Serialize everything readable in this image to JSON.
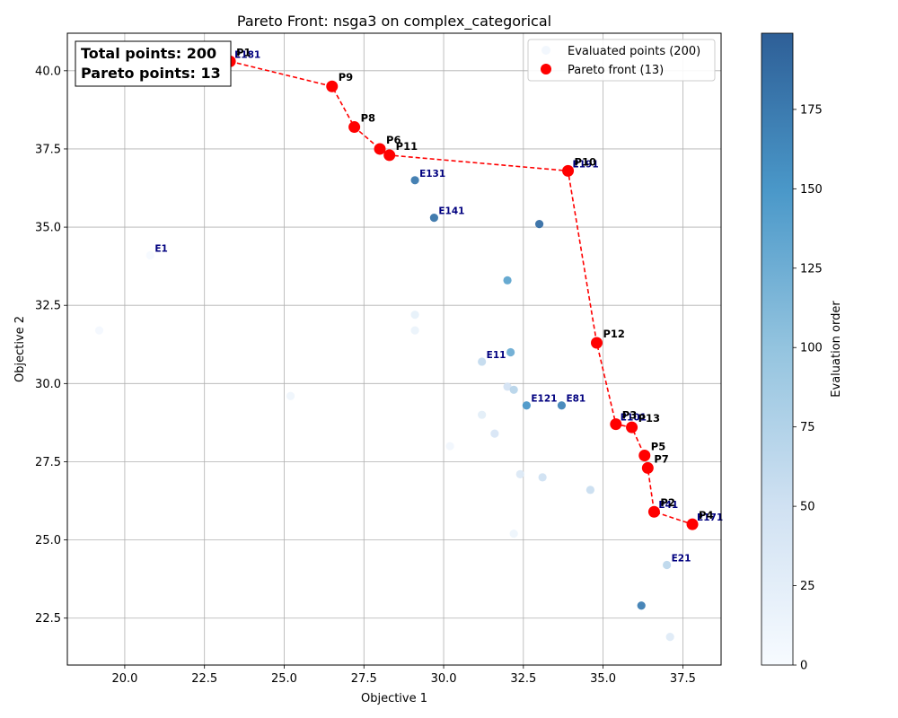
{
  "chart_data": {
    "type": "scatter",
    "title": "Pareto Front: nsga3 on complex_categorical",
    "xlabel": "Objective 1",
    "ylabel": "Objective 2",
    "xlim": [
      18.2,
      38.7
    ],
    "ylim": [
      21.0,
      41.2
    ],
    "xticks": [
      "20.0",
      "22.5",
      "25.0",
      "27.5",
      "30.0",
      "32.5",
      "35.0",
      "37.5"
    ],
    "xtick_values": [
      20.0,
      22.5,
      25.0,
      27.5,
      30.0,
      32.5,
      35.0,
      37.5
    ],
    "yticks": [
      "22.5",
      "25.0",
      "27.5",
      "30.0",
      "32.5",
      "35.0",
      "37.5",
      "40.0"
    ],
    "ytick_values": [
      22.5,
      25.0,
      27.5,
      30.0,
      32.5,
      35.0,
      37.5,
      40.0
    ],
    "grid": true,
    "legend_placement": "top-right",
    "legend": [
      {
        "label": "Evaluated points (200)",
        "color": "#f2f7fd"
      },
      {
        "label": "Pareto front (13)",
        "color": "#ff0000"
      }
    ],
    "stats": {
      "total_label": "Total points: 200",
      "pareto_label": "Pareto points: 13"
    },
    "colorbar": {
      "label": "Evaluation order",
      "range": [
        0,
        199
      ],
      "ticks": [
        "0",
        "25",
        "50",
        "75",
        "100",
        "125",
        "150",
        "175"
      ],
      "tick_values": [
        0,
        25,
        50,
        75,
        100,
        125,
        150,
        175
      ],
      "colormap": "Blues"
    },
    "evaluated_points": [
      {
        "x": 19.2,
        "y": 31.7,
        "order": 5
      },
      {
        "x": 20.8,
        "y": 34.1,
        "order": 1
      },
      {
        "x": 25.2,
        "y": 29.6,
        "order": 10
      },
      {
        "x": 29.1,
        "y": 32.2,
        "order": 20
      },
      {
        "x": 29.1,
        "y": 31.7,
        "order": 15
      },
      {
        "x": 30.2,
        "y": 28.0,
        "order": 8
      },
      {
        "x": 31.2,
        "y": 29.0,
        "order": 25
      },
      {
        "x": 31.2,
        "y": 30.7,
        "order": 60
      },
      {
        "x": 31.6,
        "y": 28.4,
        "order": 40
      },
      {
        "x": 32.0,
        "y": 29.9,
        "order": 45
      },
      {
        "x": 32.2,
        "y": 29.8,
        "order": 70
      },
      {
        "x": 32.4,
        "y": 27.1,
        "order": 35
      },
      {
        "x": 33.1,
        "y": 27.0,
        "order": 50
      },
      {
        "x": 34.6,
        "y": 26.6,
        "order": 55
      },
      {
        "x": 32.2,
        "y": 25.2,
        "order": 12
      },
      {
        "x": 37.0,
        "y": 24.2,
        "order": 65
      },
      {
        "x": 37.1,
        "y": 21.9,
        "order": 30
      },
      {
        "x": 32.0,
        "y": 33.3,
        "order": 135
      },
      {
        "x": 32.1,
        "y": 31.0,
        "order": 125
      },
      {
        "x": 32.6,
        "y": 29.3,
        "order": 150
      },
      {
        "x": 33.7,
        "y": 29.3,
        "order": 165
      },
      {
        "x": 29.1,
        "y": 36.5,
        "order": 175
      },
      {
        "x": 29.7,
        "y": 35.3,
        "order": 180
      },
      {
        "x": 33.0,
        "y": 35.1,
        "order": 185
      },
      {
        "x": 36.2,
        "y": 22.9,
        "order": 170
      }
    ],
    "eval_labels": [
      {
        "text": "E1",
        "x": 20.8,
        "y": 34.1
      },
      {
        "text": "E11",
        "x": 31.2,
        "y": 30.7
      },
      {
        "text": "E21",
        "x": 37.0,
        "y": 24.2
      },
      {
        "text": "E41",
        "x": 36.6,
        "y": 25.9
      },
      {
        "text": "E81",
        "x": 33.7,
        "y": 29.3
      },
      {
        "text": "E101",
        "x": 35.4,
        "y": 28.7
      },
      {
        "text": "E121",
        "x": 32.6,
        "y": 29.3
      },
      {
        "text": "E131",
        "x": 29.1,
        "y": 36.5
      },
      {
        "text": "E141",
        "x": 29.7,
        "y": 35.3
      },
      {
        "text": "E171",
        "x": 37.8,
        "y": 25.5
      },
      {
        "text": "E181",
        "x": 23.3,
        "y": 40.3
      },
      {
        "text": "E191",
        "x": 33.9,
        "y": 36.8
      }
    ],
    "pareto_front": [
      {
        "label": "P1",
        "x": 23.3,
        "y": 40.3
      },
      {
        "label": "P9",
        "x": 26.5,
        "y": 39.5
      },
      {
        "label": "P8",
        "x": 27.2,
        "y": 38.2
      },
      {
        "label": "P6",
        "x": 28.0,
        "y": 37.5
      },
      {
        "label": "P11",
        "x": 28.3,
        "y": 37.3
      },
      {
        "label": "P10",
        "x": 33.9,
        "y": 36.8
      },
      {
        "label": "P12",
        "x": 34.8,
        "y": 31.3
      },
      {
        "label": "P3",
        "x": 35.4,
        "y": 28.7
      },
      {
        "label": "P13",
        "x": 35.9,
        "y": 28.6
      },
      {
        "label": "P5",
        "x": 36.3,
        "y": 27.7
      },
      {
        "label": "P7",
        "x": 36.4,
        "y": 27.3
      },
      {
        "label": "P2",
        "x": 36.6,
        "y": 25.9
      },
      {
        "label": "P4",
        "x": 37.8,
        "y": 25.5
      }
    ],
    "pareto_line_color": "#ff0000"
  }
}
